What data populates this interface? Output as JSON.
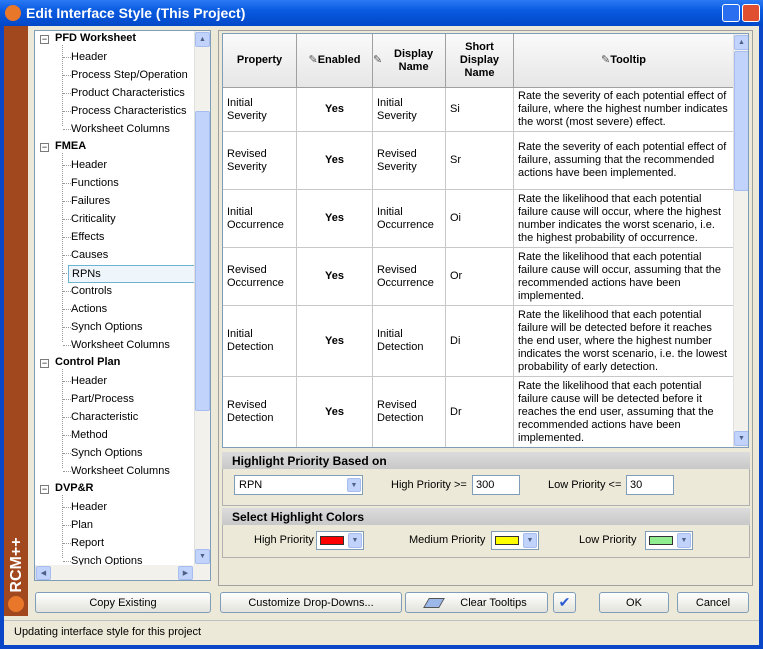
{
  "window": {
    "title": "Edit Interface Style (This Project)"
  },
  "brand": "RCM++",
  "tree": [
    {
      "label": "PFD Worksheet",
      "children": [
        "Header",
        "Process Step/Operation",
        "Product Characteristics",
        "Process Characteristics",
        "Worksheet Columns"
      ]
    },
    {
      "label": "FMEA",
      "children": [
        "Header",
        "Functions",
        "Failures",
        "Criticality",
        "Effects",
        "Causes",
        "RPNs",
        "Controls",
        "Actions",
        "Synch Options",
        "Worksheet Columns"
      ]
    },
    {
      "label": "Control Plan",
      "children": [
        "Header",
        "Part/Process",
        "Characteristic",
        "Method",
        "Synch Options",
        "Worksheet Columns"
      ]
    },
    {
      "label": "DVP&R",
      "children": [
        "Header",
        "Plan",
        "Report",
        "Synch Options"
      ]
    }
  ],
  "selected_item": "RPNs",
  "table": {
    "headers": [
      "Property",
      "Enabled",
      "Display Name",
      "Short Display Name",
      "Tooltip"
    ],
    "editable": [
      false,
      true,
      true,
      false,
      true
    ],
    "rows": [
      [
        "Initial Severity",
        "Yes",
        "Initial Severity",
        "Si",
        "Rate the severity of each potential effect of failure, where the highest number indicates the worst (most severe) effect."
      ],
      [
        "Revised Severity",
        "Yes",
        "Revised Severity",
        "Sr",
        "Rate the severity of each potential effect of failure, assuming that the recommended actions have been implemented."
      ],
      [
        "Initial Occurrence",
        "Yes",
        "Initial Occurrence",
        "Oi",
        "Rate the likelihood that each potential failure cause will occur, where the highest number indicates the worst scenario, i.e. the highest probability of occurrence."
      ],
      [
        "Revised Occurrence",
        "Yes",
        "Revised Occurrence",
        "Or",
        "Rate the likelihood that each potential failure cause will occur, assuming that the recommended actions have been implemented."
      ],
      [
        "Initial Detection",
        "Yes",
        "Initial Detection",
        "Di",
        "Rate the likelihood that each potential failure will be detected before it reaches the end user, where the highest number indicates the worst scenario, i.e. the lowest probability of early detection."
      ],
      [
        "Revised Detection",
        "Yes",
        "Revised Detection",
        "Dr",
        "Rate the likelihood that each potential failure cause will be detected before it reaches the end user, assuming that the recommended actions have been implemented."
      ]
    ]
  },
  "highlight": {
    "title": "Highlight Priority Based on",
    "basis": "RPN",
    "high_label": "High Priority >=",
    "high_value": "300",
    "low_label": "Low Priority <=",
    "low_value": "30"
  },
  "colors": {
    "title": "Select Highlight Colors",
    "items": [
      {
        "label": "High Priority",
        "color": "#ff0000"
      },
      {
        "label": "Medium Priority",
        "color": "#ffff00"
      },
      {
        "label": "Low Priority",
        "color": "#90ee90"
      }
    ]
  },
  "buttons": {
    "copy": "Copy Existing",
    "customize": "Customize Drop-Downs...",
    "clear": "Clear Tooltips",
    "ok": "OK",
    "cancel": "Cancel"
  },
  "status": "Updating interface style for this project"
}
